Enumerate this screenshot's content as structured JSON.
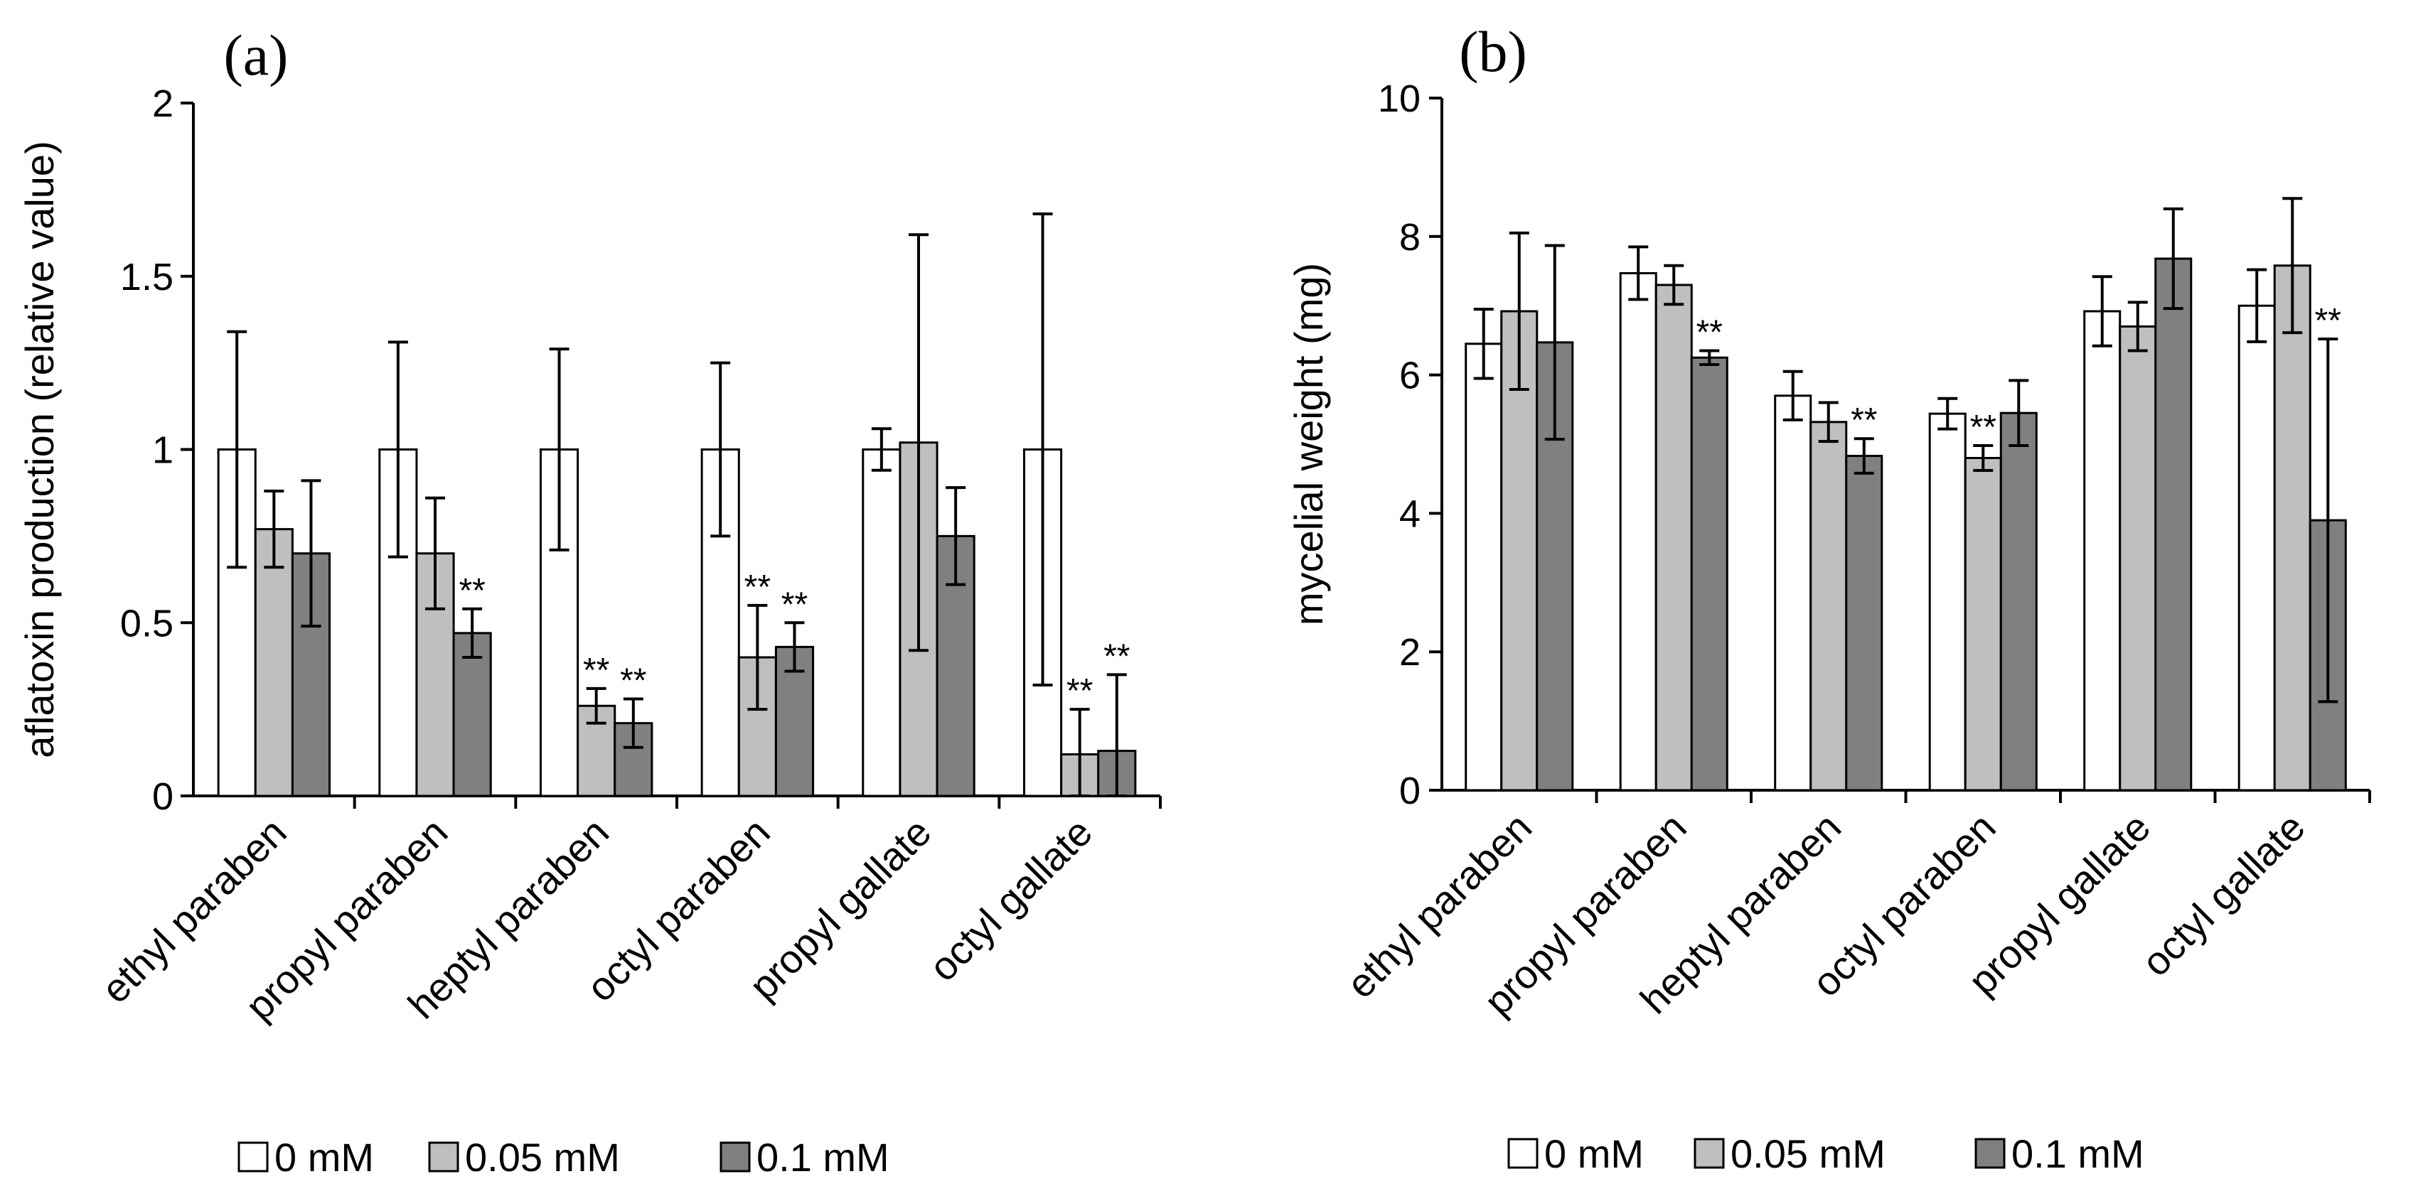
{
  "chart_data": [
    {
      "type": "bar",
      "panel_label": "(a)",
      "title": "",
      "xlabel": "",
      "ylabel": "aflatoxin production (relative value)",
      "ylim": [
        0,
        2
      ],
      "yticks": [
        "0",
        "0.5",
        "1",
        "1.5",
        "2"
      ],
      "yticks_values": [
        0,
        0.5,
        1,
        1.5,
        2
      ],
      "grid": false,
      "legend_position": "bottom",
      "categories": [
        "ethyl paraben",
        "propyl paraben",
        "heptyl paraben",
        "octyl paraben",
        "propyl gallate",
        "octyl gallate"
      ],
      "series": [
        {
          "name": "0 mM",
          "color": "#ffffff",
          "values": [
            1.0,
            1.0,
            1.0,
            1.0,
            1.0,
            1.0
          ],
          "error": [
            0.34,
            0.31,
            0.29,
            0.25,
            0.06,
            0.68
          ],
          "marks": [
            "",
            "",
            "",
            "",
            "",
            ""
          ]
        },
        {
          "name": "0.05 mM",
          "color": "#bfbfbf",
          "values": [
            0.77,
            0.7,
            0.26,
            0.4,
            1.02,
            0.12
          ],
          "error": [
            0.11,
            0.16,
            0.05,
            0.15,
            0.6,
            0.13
          ],
          "marks": [
            "",
            "",
            "**",
            "**",
            "",
            "**"
          ]
        },
        {
          "name": "0.1 mM",
          "color": "#808080",
          "values": [
            0.7,
            0.47,
            0.21,
            0.43,
            0.75,
            0.13
          ],
          "error": [
            0.21,
            0.07,
            0.07,
            0.07,
            0.14,
            0.22
          ],
          "marks": [
            "",
            "**",
            "**",
            "**",
            "",
            "**"
          ]
        }
      ]
    },
    {
      "type": "bar",
      "panel_label": "(b)",
      "title": "",
      "xlabel": "",
      "ylabel": "mycelial weight (mg)",
      "ylim": [
        0,
        10
      ],
      "yticks": [
        "0",
        "2",
        "4",
        "6",
        "8",
        "10"
      ],
      "yticks_values": [
        0,
        2,
        4,
        6,
        8,
        10
      ],
      "grid": false,
      "legend_position": "bottom",
      "categories": [
        "ethyl paraben",
        "propyl paraben",
        "heptyl paraben",
        "octyl paraben",
        "propyl gallate",
        "octyl gallate"
      ],
      "series": [
        {
          "name": "0 mM",
          "color": "#ffffff",
          "values": [
            6.45,
            7.47,
            5.7,
            5.44,
            6.92,
            7.0
          ],
          "error": [
            0.5,
            0.38,
            0.35,
            0.22,
            0.5,
            0.52
          ],
          "marks": [
            "",
            "",
            "",
            "",
            "",
            ""
          ]
        },
        {
          "name": "0.05 mM",
          "color": "#bfbfbf",
          "values": [
            6.92,
            7.3,
            5.32,
            4.8,
            6.7,
            7.58
          ],
          "error": [
            1.13,
            0.28,
            0.28,
            0.18,
            0.35,
            0.97
          ],
          "marks": [
            "",
            "",
            "",
            "**",
            "",
            ""
          ]
        },
        {
          "name": "0.1 mM",
          "color": "#808080",
          "values": [
            6.47,
            6.25,
            4.83,
            5.45,
            7.68,
            3.9
          ],
          "error": [
            1.4,
            0.1,
            0.25,
            0.47,
            0.72,
            2.62
          ],
          "marks": [
            "",
            "**",
            "**",
            "",
            "",
            "**"
          ]
        }
      ]
    }
  ]
}
